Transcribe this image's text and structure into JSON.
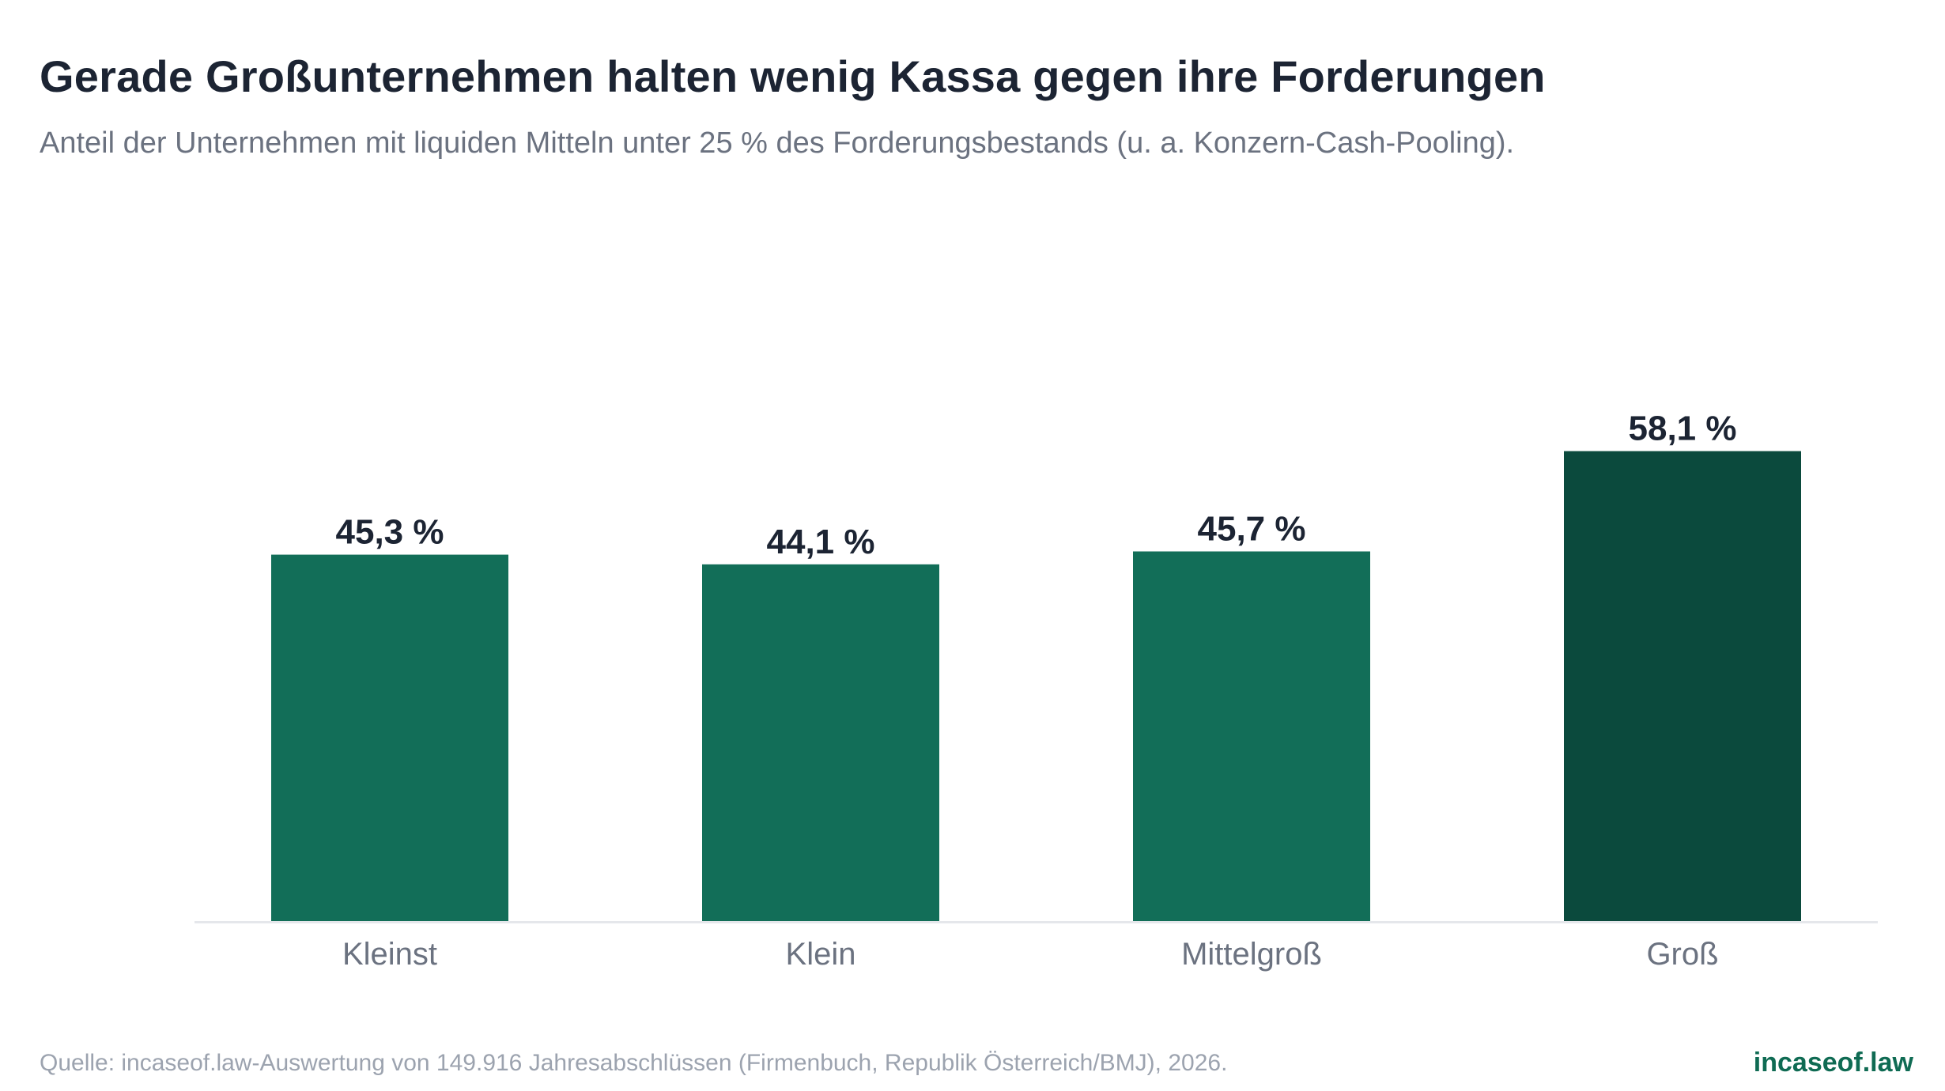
{
  "header": {
    "title": "Gerade Großunternehmen halten wenig Kassa gegen ihre Forderungen",
    "subtitle": "Anteil der Unternehmen mit liquiden Mitteln unter 25 % des Forderungsbestands (u. a. Konzern-Cash-Pooling)."
  },
  "footer": {
    "source": "Quelle: incaseof.law-Auswertung von 149.916 Jahresabschlüssen (Firmenbuch, Republik Österreich/BMJ), 2026.",
    "brand": "incaseof.law"
  },
  "chart_data": {
    "type": "bar",
    "categories": [
      "Kleinst",
      "Klein",
      "Mittelgroß",
      "Groß"
    ],
    "values": [
      45.3,
      44.1,
      45.7,
      58.1
    ],
    "value_labels": [
      "45,3 %",
      "44,1 %",
      "45,7 %",
      "58,1 %"
    ],
    "ylim": [
      0,
      60
    ],
    "grid": false,
    "legend": "none",
    "colors": {
      "bar": "#126e58",
      "bar_highlight": "#0b4a3d",
      "axis": "#e5e7eb",
      "value_label": "#1c2433",
      "category_label": "#6b7280"
    },
    "highlight_index": 3
  }
}
